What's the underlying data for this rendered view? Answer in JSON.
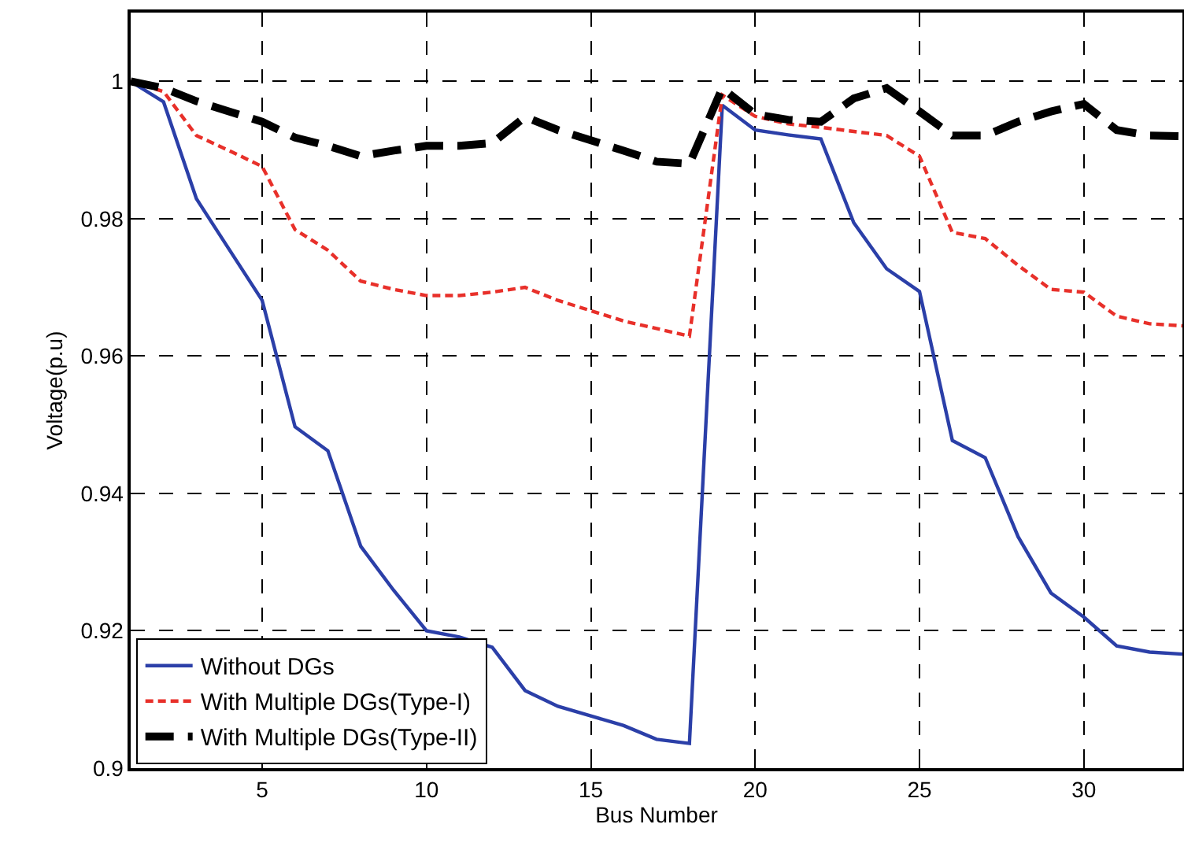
{
  "chart_data": {
    "type": "line",
    "xlabel": "Bus Number",
    "ylabel": "Voltage(p.u)",
    "x": [
      1,
      2,
      3,
      4,
      5,
      6,
      7,
      8,
      9,
      10,
      11,
      12,
      13,
      14,
      15,
      16,
      17,
      18,
      19,
      20,
      21,
      22,
      23,
      24,
      25,
      26,
      27,
      28,
      29,
      30,
      31,
      32,
      33
    ],
    "series": [
      {
        "name": "Without DGs",
        "color": "#2b3fa8",
        "line_style": "solid",
        "values": [
          1,
          0.997,
          0.9829,
          0.9755,
          0.9681,
          0.9497,
          0.9462,
          0.9323,
          0.9259,
          0.92,
          0.9191,
          0.9176,
          0.9113,
          0.909,
          0.9076,
          0.9062,
          0.9042,
          0.9036,
          0.9965,
          0.9929,
          0.9922,
          0.9916,
          0.9794,
          0.9727,
          0.9694,
          0.9477,
          0.9452,
          0.9337,
          0.9255,
          0.922,
          0.9178,
          0.9169,
          0.9166
        ]
      },
      {
        "name": "With Multiple DGs(Type-I)",
        "color": "#e8302a",
        "line_style": "dotted",
        "values": [
          1,
          0.9985,
          0.9921,
          0.9899,
          0.9876,
          0.9784,
          0.9754,
          0.9709,
          0.9697,
          0.9688,
          0.9688,
          0.9693,
          0.97,
          0.9681,
          0.9666,
          0.9651,
          0.964,
          0.9629,
          0.998,
          0.9949,
          0.9938,
          0.9933,
          0.9927,
          0.9921,
          0.9891,
          0.978,
          0.9771,
          0.9732,
          0.9697,
          0.9693,
          0.9658,
          0.9647,
          0.9644
        ]
      },
      {
        "name": "With Multiple DGs(Type-II)",
        "color": "#000000",
        "line_style": "dashed",
        "values": [
          1,
          0.999,
          0.9971,
          0.9956,
          0.9941,
          0.9918,
          0.9906,
          0.9891,
          0.9899,
          0.9906,
          0.9906,
          0.991,
          0.9948,
          0.9929,
          0.9914,
          0.9899,
          0.9883,
          0.988,
          0.999,
          0.9952,
          0.9944,
          0.9941,
          0.9975,
          0.999,
          0.9956,
          0.9921,
          0.9921,
          0.9941,
          0.9956,
          0.9967,
          0.9929,
          0.9921,
          0.992
        ]
      }
    ],
    "xlim": [
      1,
      33
    ],
    "xticks": [
      5,
      10,
      15,
      20,
      25,
      30
    ],
    "ylim": [
      0.9,
      1.01
    ],
    "yticks": [
      0.9,
      0.92,
      0.94,
      0.96,
      0.98,
      1
    ],
    "grid": true,
    "legend": "bottom left",
    "marker": "none"
  }
}
